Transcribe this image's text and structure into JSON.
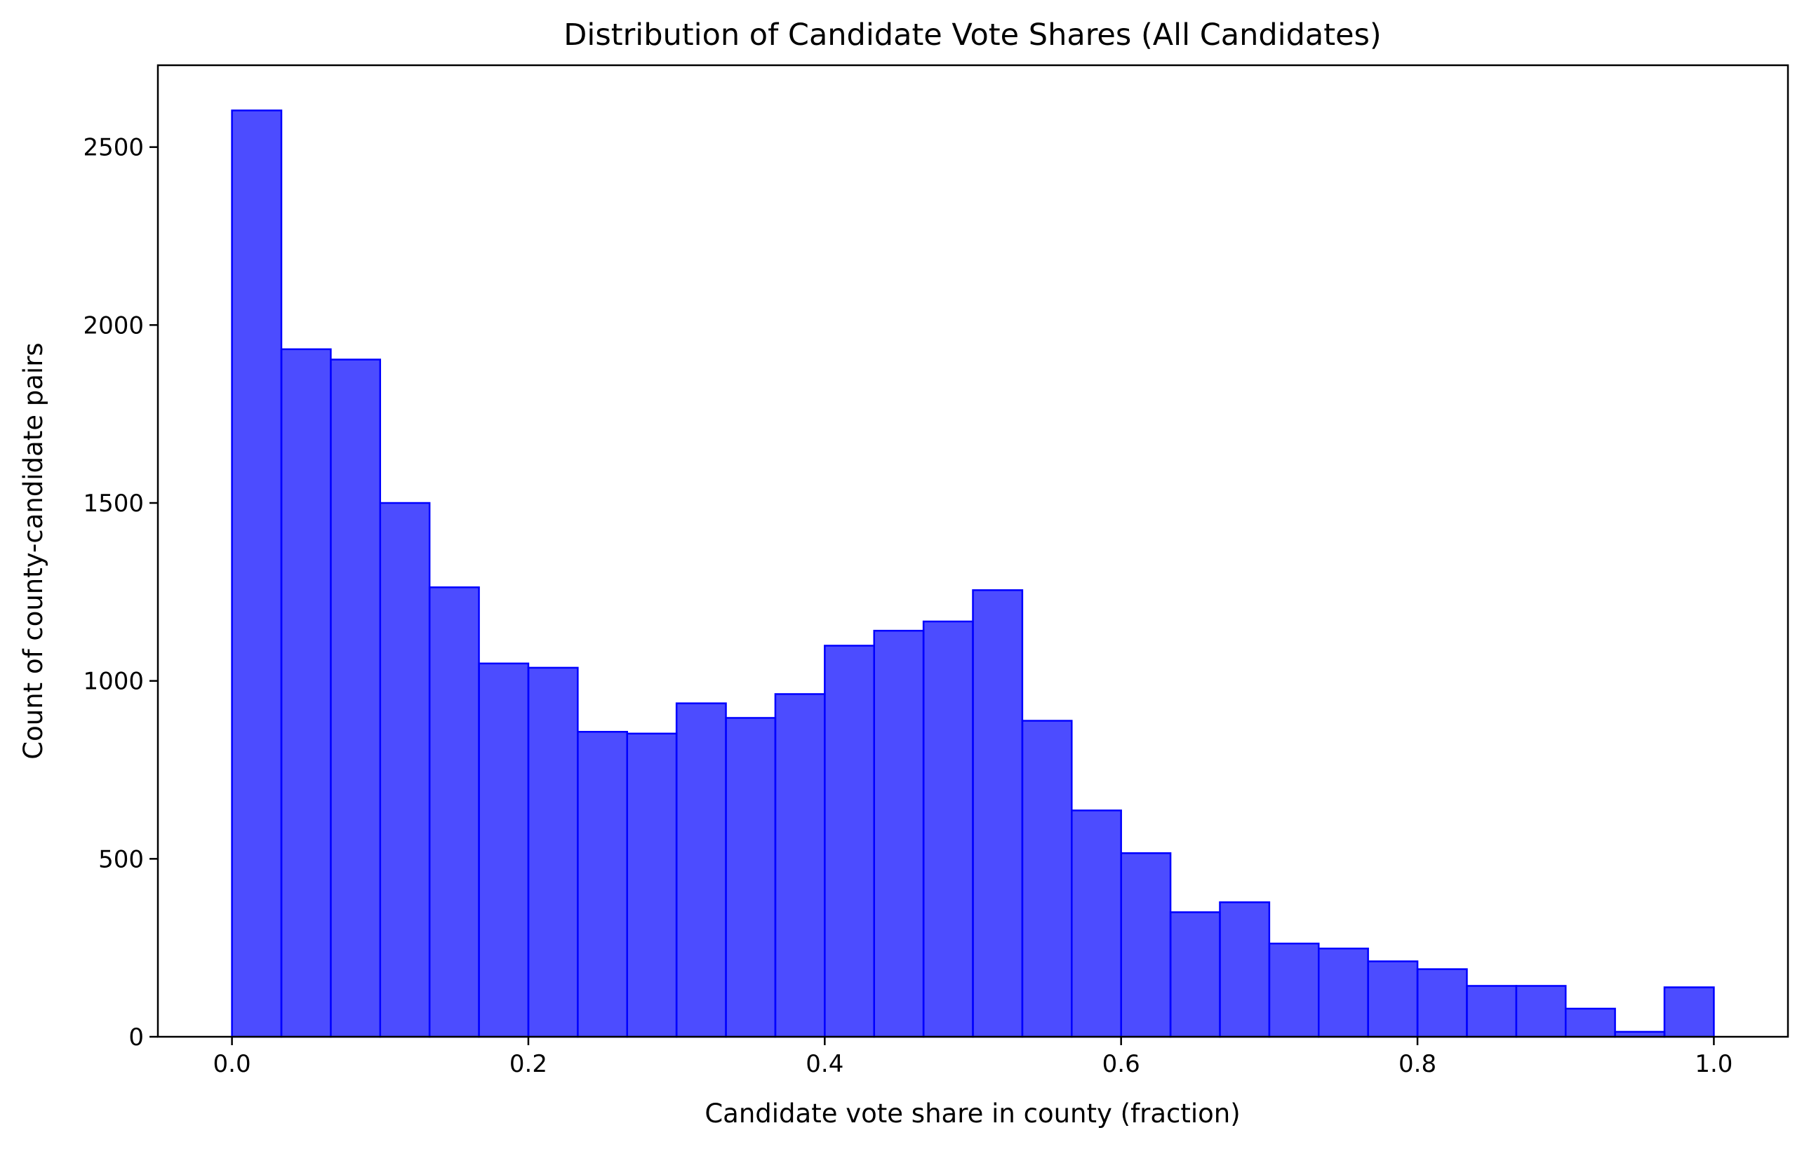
{
  "chart_data": {
    "type": "bar",
    "subtype": "histogram",
    "title": "Distribution of Candidate Vote Shares (All Candidates)",
    "xlabel": "Candidate vote share in county (fraction)",
    "ylabel": "Count of county-candidate pairs",
    "xlim": [
      -0.05,
      1.05
    ],
    "ylim": [
      0,
      2730
    ],
    "x_ticks": [
      0.0,
      0.2,
      0.4,
      0.6,
      0.8,
      1.0
    ],
    "x_tick_labels": [
      "0.0",
      "0.2",
      "0.4",
      "0.6",
      "0.8",
      "1.0"
    ],
    "y_ticks": [
      0,
      500,
      1000,
      1500,
      2000,
      2500
    ],
    "y_tick_labels": [
      "0",
      "500",
      "1000",
      "1500",
      "2000",
      "2500"
    ],
    "bin_range": [
      0.0,
      1.0
    ],
    "bin_count": 30,
    "values": [
      2603,
      1932,
      1903,
      1500,
      1263,
      1049,
      1037,
      857,
      852,
      937,
      896,
      963,
      1099,
      1141,
      1167,
      1255,
      888,
      636,
      516,
      350,
      378,
      262,
      248,
      212,
      190,
      143,
      143,
      79,
      14,
      139
    ],
    "bar_color": "#0000ff",
    "bar_alpha": 0.7,
    "edge_color": "#0000ff",
    "grid": false,
    "legend": "none"
  }
}
